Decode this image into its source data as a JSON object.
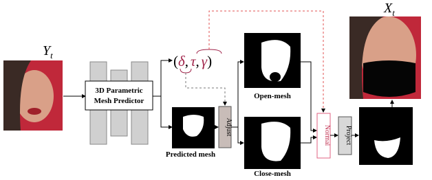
{
  "input": {
    "symbol": "Y",
    "subscript": "t"
  },
  "output": {
    "symbol": "X",
    "subscript": "t"
  },
  "predictor": {
    "line1": "3D Parametric",
    "line2": "Mesh Predictor"
  },
  "params": {
    "open": "(",
    "delta": "δ",
    "sep1": ",",
    "tau": "τ",
    "sep2": ",",
    "gamma": "γ",
    "close": ")"
  },
  "nodes": {
    "predicted": "Predicted mesh",
    "adjust": "Adjust",
    "open_mesh": "Open-mesh",
    "close_mesh": "Close-mesh",
    "normal": "Normal",
    "project": "Project"
  }
}
